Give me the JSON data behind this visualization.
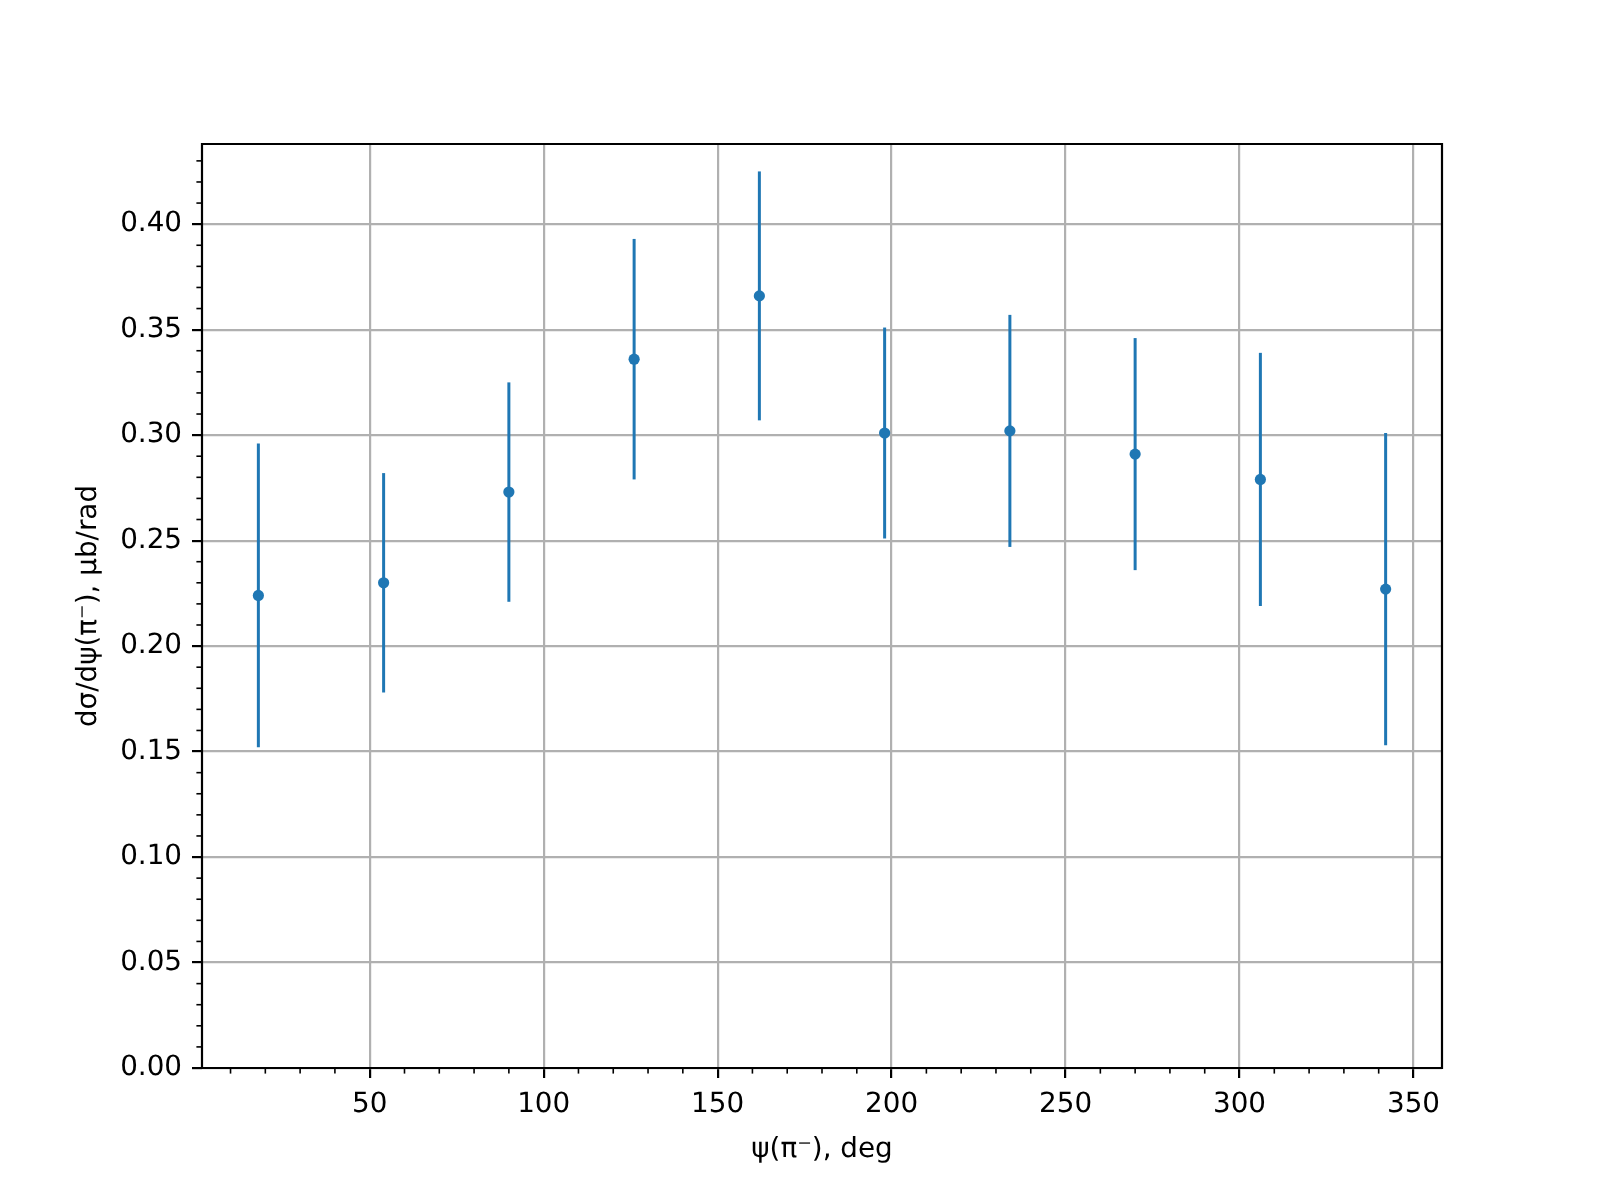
{
  "chart_data": {
    "type": "scatter",
    "xlabel": "ψ(π⁻), deg",
    "ylabel": "dσ/dψ(π⁻), μb/rad",
    "x": [
      18,
      54,
      90,
      126,
      162,
      198,
      234,
      270,
      306,
      342
    ],
    "values": [
      0.224,
      0.23,
      0.273,
      0.336,
      0.366,
      0.301,
      0.302,
      0.291,
      0.279,
      0.227
    ],
    "errors": [
      0.072,
      0.052,
      0.052,
      0.057,
      0.059,
      0.05,
      0.055,
      0.055,
      0.06,
      0.074
    ],
    "color": "#1f77b4",
    "marker": "circle",
    "grid": true,
    "xlim": [
      1.8,
      358.2
    ],
    "xticks": [
      {
        "value": 10,
        "label": null
      },
      {
        "value": 20,
        "label": null
      },
      {
        "value": 30,
        "label": null
      },
      {
        "value": 40,
        "label": null
      },
      50,
      {
        "value": 60,
        "label": null
      },
      {
        "value": 70,
        "label": null
      },
      {
        "value": 80,
        "label": null
      },
      {
        "value": 90,
        "label": null
      },
      100,
      {
        "value": 110,
        "label": null
      },
      {
        "value": 120,
        "label": null
      },
      {
        "value": 130,
        "label": null
      },
      {
        "value": 140,
        "label": null
      },
      150,
      {
        "value": 160,
        "label": null
      },
      {
        "value": 170,
        "label": null
      },
      {
        "value": 180,
        "label": null
      },
      {
        "value": 190,
        "label": null
      },
      200,
      {
        "value": 210,
        "label": null
      },
      {
        "value": 220,
        "label": null
      },
      {
        "value": 230,
        "label": null
      },
      {
        "value": 240,
        "label": null
      },
      250,
      {
        "value": 260,
        "label": null
      },
      {
        "value": 270,
        "label": null
      },
      {
        "value": 280,
        "label": null
      },
      {
        "value": 290,
        "label": null
      },
      300,
      {
        "value": 310,
        "label": null
      },
      {
        "value": 320,
        "label": null
      },
      {
        "value": 330,
        "label": null
      },
      {
        "value": 340,
        "label": null
      },
      350
    ],
    "ylim": [
      0,
      0.438
    ],
    "yticks": [
      {
        "value": 0,
        "label": "0.00"
      },
      {
        "value": 0.01,
        "label": null
      },
      {
        "value": 0.02,
        "label": null
      },
      {
        "value": 0.03,
        "label": null
      },
      {
        "value": 0.04,
        "label": null
      },
      0.05,
      {
        "value": 0.06,
        "label": null
      },
      {
        "value": 0.07,
        "label": null
      },
      {
        "value": 0.08,
        "label": null
      },
      {
        "value": 0.09,
        "label": null
      },
      {
        "value": 0.1,
        "label": "0.10"
      },
      {
        "value": 0.11,
        "label": null
      },
      {
        "value": 0.12,
        "label": null
      },
      {
        "value": 0.13,
        "label": null
      },
      {
        "value": 0.14,
        "label": null
      },
      0.15,
      {
        "value": 0.16,
        "label": null
      },
      {
        "value": 0.17,
        "label": null
      },
      {
        "value": 0.18,
        "label": null
      },
      {
        "value": 0.19,
        "label": null
      },
      {
        "value": 0.2,
        "label": "0.20"
      },
      {
        "value": 0.21,
        "label": null
      },
      {
        "value": 0.22,
        "label": null
      },
      {
        "value": 0.23,
        "label": null
      },
      {
        "value": 0.24,
        "label": null
      },
      0.25,
      {
        "value": 0.26,
        "label": null
      },
      {
        "value": 0.27,
        "label": null
      },
      {
        "value": 0.28,
        "label": null
      },
      {
        "value": 0.29,
        "label": null
      },
      {
        "value": 0.3,
        "label": "0.30"
      },
      {
        "value": 0.31,
        "label": null
      },
      {
        "value": 0.32,
        "label": null
      },
      {
        "value": 0.33,
        "label": null
      },
      {
        "value": 0.34,
        "label": null
      },
      0.35,
      {
        "value": 0.36,
        "label": null
      },
      {
        "value": 0.37,
        "label": null
      },
      {
        "value": 0.38,
        "label": null
      },
      {
        "value": 0.39,
        "label": null
      },
      {
        "value": 0.4,
        "label": "0.40"
      },
      {
        "value": 0.41,
        "label": null
      },
      {
        "value": 0.42,
        "label": null
      },
      {
        "value": 0.43,
        "label": null
      }
    ]
  }
}
